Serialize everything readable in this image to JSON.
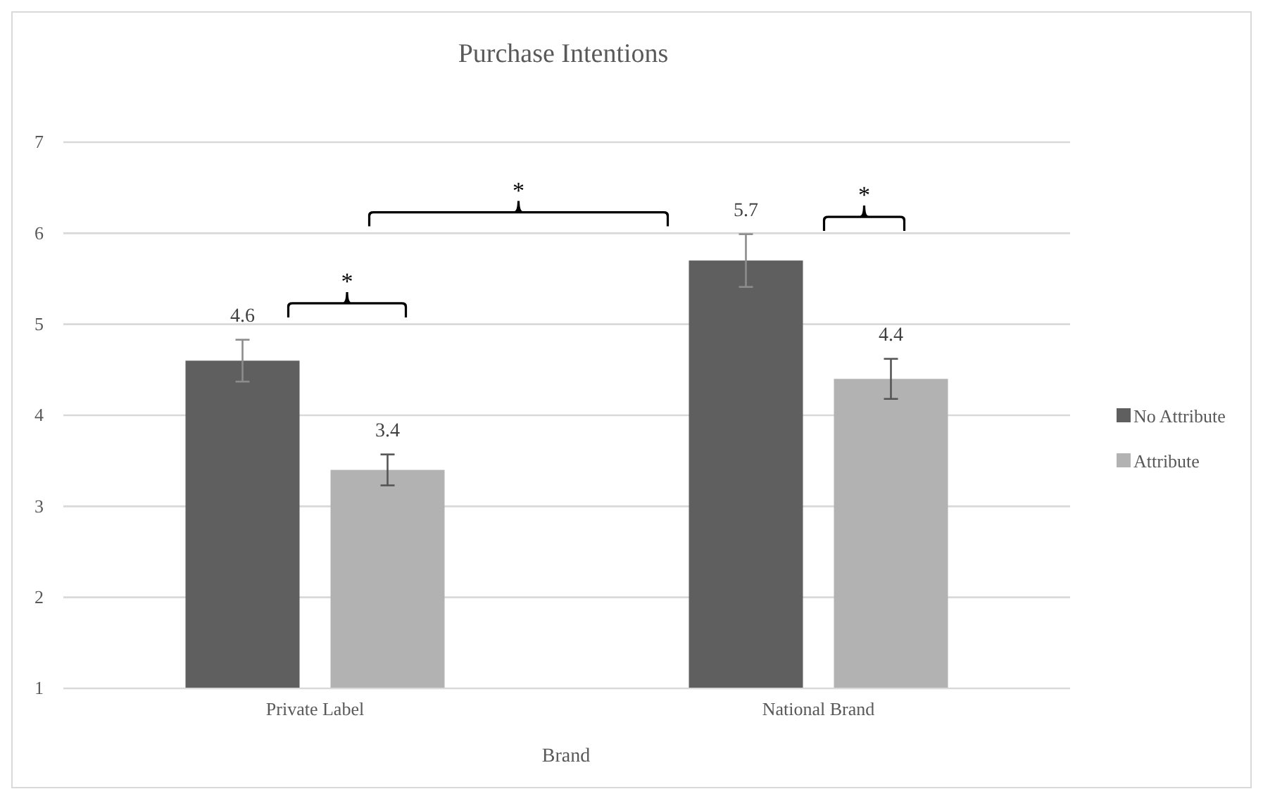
{
  "chart_data": {
    "type": "bar",
    "title": "Purchase Intentions",
    "xlabel": "Brand",
    "categories": [
      "Private Label",
      "National Brand"
    ],
    "series": [
      {
        "name": "No Attribute",
        "color": "#5f5f5f",
        "values": [
          4.6,
          5.7
        ],
        "errors": [
          0.23,
          0.29
        ]
      },
      {
        "name": "Attribute",
        "color": "#b2b2b2",
        "values": [
          3.4,
          4.4
        ],
        "errors": [
          0.17,
          0.22
        ]
      }
    ],
    "ylim": [
      1,
      7
    ],
    "yticks": [
      1,
      2,
      3,
      4,
      5,
      6,
      7
    ],
    "grid": "y",
    "legend": "right",
    "data_labels": true,
    "annotations": [
      "*",
      "*",
      "*"
    ]
  }
}
